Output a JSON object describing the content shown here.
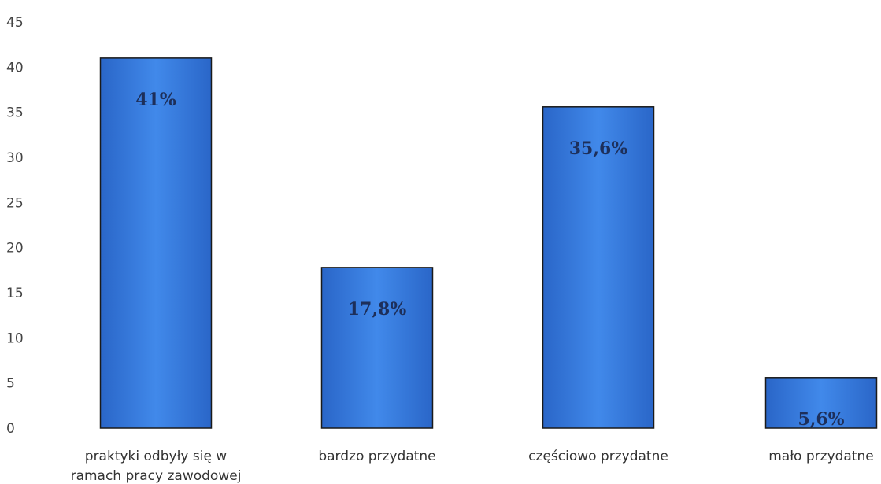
{
  "chart_data": {
    "type": "bar",
    "title": "",
    "xlabel": "",
    "ylabel": "",
    "ylim": [
      0,
      45
    ],
    "yticks": [
      0,
      5,
      10,
      15,
      20,
      25,
      30,
      35,
      40,
      45
    ],
    "grid": false,
    "legend": "none",
    "categories": [
      "praktyki odbyły się w ramach pracy zawodowej",
      "bardzo przydatne",
      "częściowo przydatne",
      "mało przydatne"
    ],
    "category_lines": [
      [
        "praktyki odbyły się w",
        "ramach pracy zawodowej"
      ],
      [
        "bardzo przydatne"
      ],
      [
        "częściowo przydatne"
      ],
      [
        "mało przydatne"
      ]
    ],
    "values": [
      41,
      17.8,
      35.6,
      5.6
    ],
    "data_labels": [
      "41%",
      "17,8%",
      "35,6%",
      "5,6%"
    ],
    "colors": {
      "bar_fill": "#2e6fd6",
      "bar_highlight": "#4d8ff0",
      "bar_stroke": "#1a1a1a",
      "value_label": "#1d2f5a"
    }
  }
}
